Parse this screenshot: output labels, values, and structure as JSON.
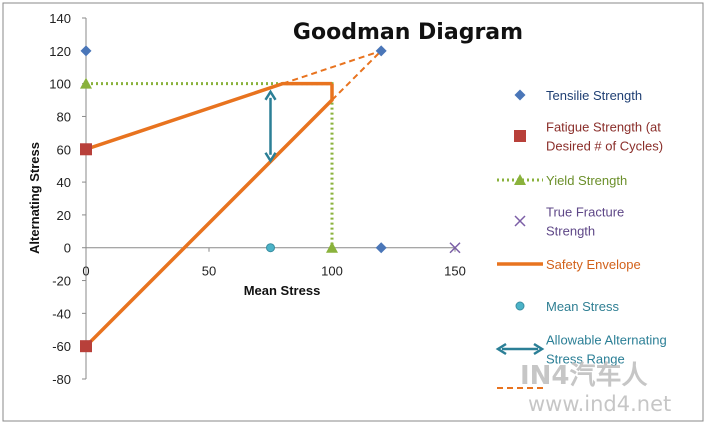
{
  "chart_data": {
    "type": "line",
    "title": "Goodman Diagram",
    "xlabel": "Mean Stress",
    "ylabel": "Alternating Stress",
    "xlim": [
      0,
      150
    ],
    "ylim": [
      -80,
      140
    ],
    "x_ticks": [
      0,
      50,
      100,
      150
    ],
    "y_ticks": [
      140,
      120,
      100,
      80,
      60,
      40,
      20,
      0,
      -20,
      -40,
      -60,
      -80
    ],
    "grid": false,
    "legend_position": "right",
    "colors": {
      "tensile": "#4a76b8",
      "fatigue": "#b8403a",
      "yield": "#8ab23c",
      "true_fracture": "#7b5ea6",
      "safety": "#e8731f",
      "mean": "#4bb3c8",
      "allowable": "#2b7f96"
    },
    "series": [
      {
        "name": "Tensilie Strength",
        "marker": "diamond",
        "points": [
          [
            0,
            120
          ],
          [
            120,
            120
          ],
          [
            120,
            0
          ]
        ]
      },
      {
        "name": "Fatigue Strength  (at Desired # of Cycles)",
        "marker": "square",
        "points": [
          [
            0,
            60
          ],
          [
            0,
            -60
          ]
        ]
      },
      {
        "name": "Yield Strength",
        "marker": "triangle",
        "style": "dotted",
        "points": [
          [
            0,
            100
          ],
          [
            100,
            100
          ],
          [
            100,
            0
          ]
        ]
      },
      {
        "name": "True Fracture Strength",
        "marker": "x",
        "points": [
          [
            150,
            0
          ]
        ]
      },
      {
        "name": "Safety Envelope",
        "style": "solid",
        "segments": [
          [
            [
              0,
              60
            ],
            [
              80,
              100
            ],
            [
              100,
              100
            ]
          ],
          [
            [
              0,
              -60
            ],
            [
              100,
              90
            ],
            [
              100,
              100
            ]
          ]
        ]
      },
      {
        "name": "Mean Stress",
        "marker": "circle",
        "points": [
          [
            75,
            0
          ]
        ]
      },
      {
        "name": "Allowable Alternating Stress Range",
        "style": "double-arrow",
        "points": [
          [
            75,
            95
          ],
          [
            75,
            53
          ]
        ]
      },
      {
        "name": "",
        "style": "dashed",
        "segments": [
          [
            [
              80,
              100
            ],
            [
              120,
              120
            ]
          ],
          [
            [
              100,
              90
            ],
            [
              120,
              120
            ]
          ]
        ]
      }
    ]
  },
  "legend": [
    {
      "key": "tensile",
      "label_lines": [
        "Tensilie Strength"
      ]
    },
    {
      "key": "fatigue",
      "label_lines": [
        "Fatigue Strength  (at",
        "Desired # of Cycles)"
      ]
    },
    {
      "key": "yield",
      "label_lines": [
        "Yield Strength"
      ]
    },
    {
      "key": "true_fracture",
      "label_lines": [
        "True Fracture",
        "Strength"
      ]
    },
    {
      "key": "safety",
      "label_lines": [
        "Safety Envelope"
      ]
    },
    {
      "key": "mean",
      "label_lines": [
        "Mean Stress"
      ]
    },
    {
      "key": "allowable",
      "label_lines": [
        "Allowable Alternating",
        "Stress Range"
      ]
    },
    {
      "key": "extension",
      "label_lines": []
    }
  ],
  "watermark": {
    "logo_text": "IN4汽车人",
    "url_text": "www.ind4.net"
  }
}
